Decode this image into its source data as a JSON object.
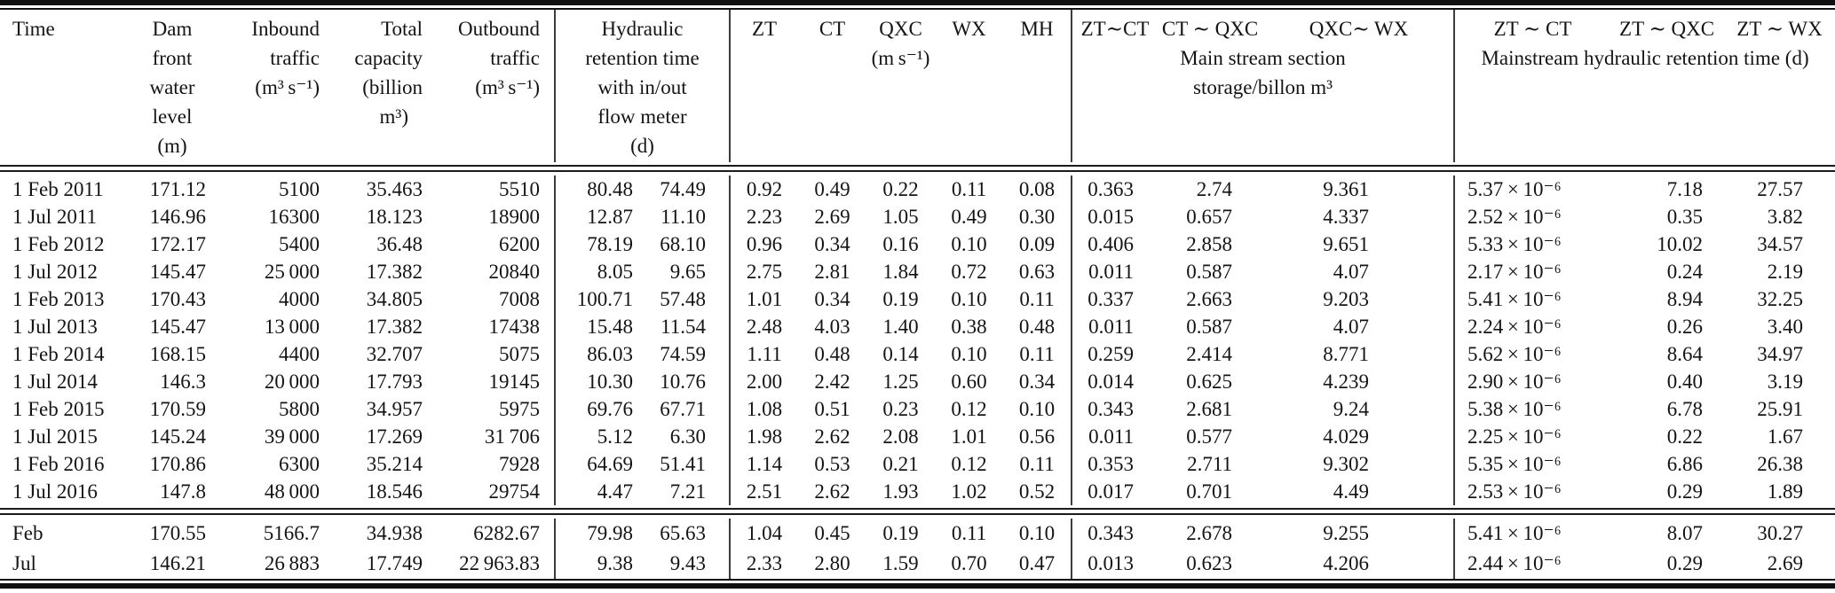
{
  "header": {
    "time": "Time",
    "level_lines": [
      "Dam",
      "front",
      "water",
      "level",
      "(m)"
    ],
    "inbound_lines": [
      "Inbound",
      "traffic",
      "(m³ s⁻¹)"
    ],
    "capacity_lines": [
      "Total",
      "capacity",
      "(billion",
      "m³)"
    ],
    "outbound_lines": [
      "Outbound",
      "traffic",
      "(m³ s⁻¹)"
    ],
    "hrt_lines": [
      "Hydraulic",
      "retention time",
      "with in/out",
      "flow meter",
      "(d)"
    ],
    "velocity_cols": [
      "ZT",
      "CT",
      "QXC",
      "WX",
      "MH"
    ],
    "velocity_unit": "(m s⁻¹)",
    "storage_cols": [
      "ZT∼CT",
      "CT ∼ QXC",
      "QXC∼ WX"
    ],
    "storage_sub_lines": [
      "Main stream section",
      "storage/billon m³"
    ],
    "retention_cols": [
      "ZT ∼ CT",
      "ZT ∼ QXC",
      "ZT ∼ WX"
    ],
    "retention_sub": "Mainstream hydraulic retention time (d)"
  },
  "rows": [
    {
      "cells": [
        "1 Feb 2011",
        "171.12",
        "5100",
        "35.463",
        "5510",
        "80.48",
        "74.49",
        "0.92",
        "0.49",
        "0.22",
        "0.11",
        "0.08",
        "0.363",
        "2.74",
        "9.361",
        "5.37 × 10⁻⁶",
        "7.18",
        "27.57"
      ]
    },
    {
      "cells": [
        "1 Jul 2011",
        "146.96",
        "16300",
        "18.123",
        "18900",
        "12.87",
        "11.10",
        "2.23",
        "2.69",
        "1.05",
        "0.49",
        "0.30",
        "0.015",
        "0.657",
        "4.337",
        "2.52 × 10⁻⁶",
        "0.35",
        "3.82"
      ]
    },
    {
      "cells": [
        "1 Feb 2012",
        "172.17",
        "5400",
        "36.48",
        "6200",
        "78.19",
        "68.10",
        "0.96",
        "0.34",
        "0.16",
        "0.10",
        "0.09",
        "0.406",
        "2.858",
        "9.651",
        "5.33 × 10⁻⁶",
        "10.02",
        "34.57"
      ]
    },
    {
      "cells": [
        "1 Jul 2012",
        "145.47",
        "25 000",
        "17.382",
        "20840",
        "8.05",
        "9.65",
        "2.75",
        "2.81",
        "1.84",
        "0.72",
        "0.63",
        "0.011",
        "0.587",
        "4.07",
        "2.17 × 10⁻⁶",
        "0.24",
        "2.19"
      ]
    },
    {
      "cells": [
        "1 Feb 2013",
        "170.43",
        "4000",
        "34.805",
        "7008",
        "100.71",
        "57.48",
        "1.01",
        "0.34",
        "0.19",
        "0.10",
        "0.11",
        "0.337",
        "2.663",
        "9.203",
        "5.41 × 10⁻⁶",
        "8.94",
        "32.25"
      ]
    },
    {
      "cells": [
        "1 Jul 2013",
        "145.47",
        "13 000",
        "17.382",
        "17438",
        "15.48",
        "11.54",
        "2.48",
        "4.03",
        "1.40",
        "0.38",
        "0.48",
        "0.011",
        "0.587",
        "4.07",
        "2.24 × 10⁻⁶",
        "0.26",
        "3.40"
      ]
    },
    {
      "cells": [
        "1 Feb 2014",
        "168.15",
        "4400",
        "32.707",
        "5075",
        "86.03",
        "74.59",
        "1.11",
        "0.48",
        "0.14",
        "0.10",
        "0.11",
        "0.259",
        "2.414",
        "8.771",
        "5.62 × 10⁻⁶",
        "8.64",
        "34.97"
      ]
    },
    {
      "cells": [
        "1 Jul 2014",
        "146.3",
        "20 000",
        "17.793",
        "19145",
        "10.30",
        "10.76",
        "2.00",
        "2.42",
        "1.25",
        "0.60",
        "0.34",
        "0.014",
        "0.625",
        "4.239",
        "2.90 × 10⁻⁶",
        "0.40",
        "3.19"
      ]
    },
    {
      "cells": [
        "1 Feb 2015",
        "170.59",
        "5800",
        "34.957",
        "5975",
        "69.76",
        "67.71",
        "1.08",
        "0.51",
        "0.23",
        "0.12",
        "0.10",
        "0.343",
        "2.681",
        "9.24",
        "5.38 × 10⁻⁶",
        "6.78",
        "25.91"
      ]
    },
    {
      "cells": [
        "1 Jul 2015",
        "145.24",
        "39 000",
        "17.269",
        "31 706",
        "5.12",
        "6.30",
        "1.98",
        "2.62",
        "2.08",
        "1.01",
        "0.56",
        "0.011",
        "0.577",
        "4.029",
        "2.25 × 10⁻⁶",
        "0.22",
        "1.67"
      ]
    },
    {
      "cells": [
        "1 Feb 2016",
        "170.86",
        "6300",
        "35.214",
        "7928",
        "64.69",
        "51.41",
        "1.14",
        "0.53",
        "0.21",
        "0.12",
        "0.11",
        "0.353",
        "2.711",
        "9.302",
        "5.35 × 10⁻⁶",
        "6.86",
        "26.38"
      ]
    },
    {
      "cells": [
        "1 Jul 2016",
        "147.8",
        "48 000",
        "18.546",
        "29754",
        "4.47",
        "7.21",
        "2.51",
        "2.62",
        "1.93",
        "1.02",
        "0.52",
        "0.017",
        "0.701",
        "4.49",
        "2.53 × 10⁻⁶",
        "0.29",
        "1.89"
      ]
    }
  ],
  "summary_rows": [
    {
      "cells": [
        "Feb",
        "170.55",
        "5166.7",
        "34.938",
        "6282.67",
        "79.98",
        "65.63",
        "1.04",
        "0.45",
        "0.19",
        "0.11",
        "0.10",
        "0.343",
        "2.678",
        "9.255",
        "5.41 × 10⁻⁶",
        "8.07",
        "30.27"
      ]
    },
    {
      "cells": [
        "Jul",
        "146.21",
        "26 883",
        "17.749",
        "22 963.83",
        "9.38",
        "9.43",
        "2.33",
        "2.80",
        "1.59",
        "0.70",
        "0.47",
        "0.013",
        "0.623",
        "4.206",
        "2.44 × 10⁻⁶",
        "0.29",
        "2.69"
      ]
    }
  ]
}
